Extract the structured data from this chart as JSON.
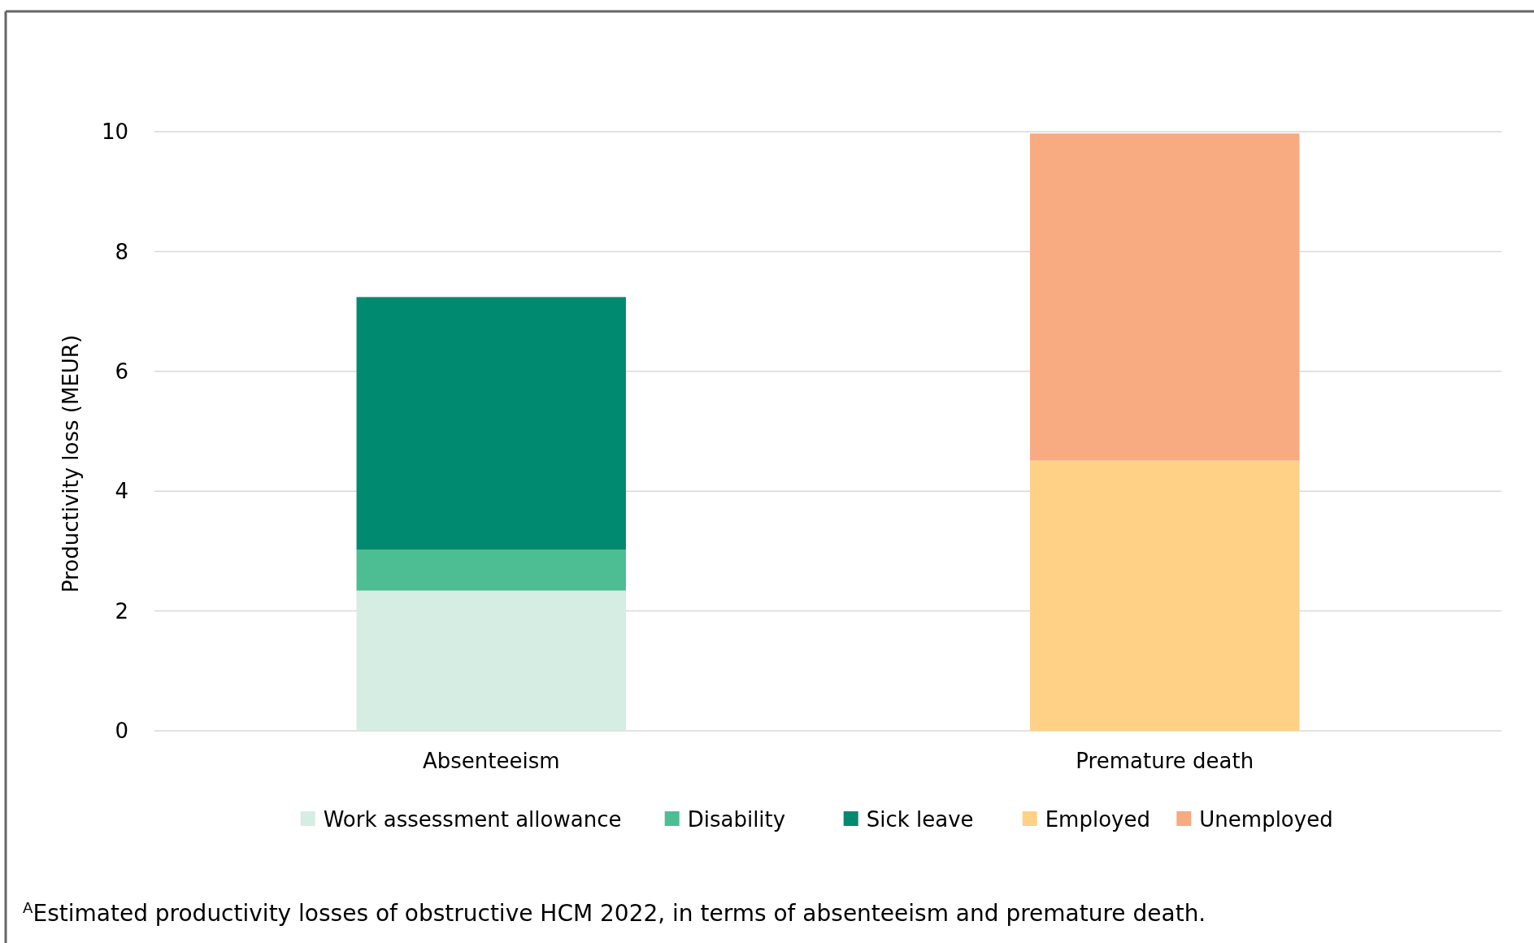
{
  "chart_data": {
    "type": "bar",
    "stacked": true,
    "ylabel": "Productivity loss (MEUR)",
    "categories": [
      "Absenteeism",
      "Premature death"
    ],
    "series": [
      {
        "name": "Work assessment allowance",
        "color": "#d6ede4",
        "values": [
          2.34,
          null
        ]
      },
      {
        "name": "Disability",
        "color": "#4dbd94",
        "values": [
          0.68,
          null
        ]
      },
      {
        "name": "Sick leave",
        "color": "#008a70",
        "values": [
          4.22,
          null
        ]
      },
      {
        "name": "Employed",
        "color": "#ffd187",
        "values": [
          null,
          4.51
        ]
      },
      {
        "name": "Unemployed",
        "color": "#f8aa80",
        "values": [
          null,
          5.46
        ]
      }
    ],
    "ylim": [
      0,
      10
    ],
    "yticks": [
      0,
      2,
      4,
      6,
      8,
      10
    ],
    "grid": "y",
    "legend": "bottom",
    "annotations": [
      "$^{A}$Estimated productivity losses of obstructive HCM 2022, in terms of absenteeism and premature death."
    ]
  }
}
